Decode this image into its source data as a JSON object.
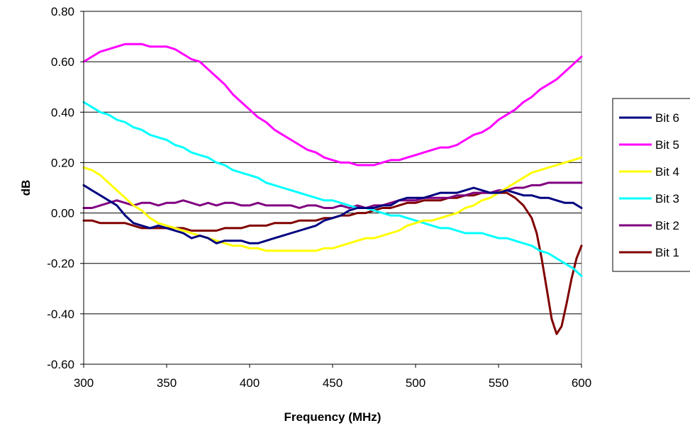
{
  "chart_data": {
    "type": "line",
    "title": "",
    "xlabel": "Frequency (MHz)",
    "ylabel": "dB",
    "xlim": [
      300,
      600
    ],
    "ylim": [
      -0.6,
      0.8
    ],
    "x_ticks": [
      300,
      350,
      400,
      450,
      500,
      550,
      600
    ],
    "x_tick_labels": [
      "300",
      "350",
      "400",
      "450",
      "500",
      "550",
      "600"
    ],
    "y_ticks": [
      -0.6,
      -0.4,
      -0.2,
      0.0,
      0.2,
      0.4,
      0.6,
      0.8
    ],
    "y_tick_labels": [
      "-0.60",
      "-0.40",
      "-0.20",
      "0.00",
      "0.20",
      "0.40",
      "0.60",
      "0.80"
    ],
    "grid": "horizontal",
    "legend_position": "right",
    "series": [
      {
        "name": "Bit 6",
        "color": "#000080",
        "x": [
          300,
          305,
          310,
          315,
          320,
          325,
          330,
          335,
          340,
          345,
          350,
          355,
          360,
          365,
          370,
          375,
          380,
          385,
          390,
          395,
          400,
          405,
          410,
          415,
          420,
          425,
          430,
          435,
          440,
          445,
          450,
          455,
          460,
          465,
          470,
          475,
          480,
          485,
          490,
          495,
          500,
          505,
          510,
          515,
          520,
          525,
          530,
          535,
          540,
          545,
          550,
          555,
          560,
          565,
          570,
          575,
          580,
          585,
          590,
          595,
          600
        ],
        "values": [
          0.11,
          0.09,
          0.07,
          0.05,
          0.03,
          -0.01,
          -0.04,
          -0.05,
          -0.06,
          -0.05,
          -0.06,
          -0.07,
          -0.08,
          -0.1,
          -0.09,
          -0.1,
          -0.12,
          -0.11,
          -0.11,
          -0.11,
          -0.12,
          -0.12,
          -0.11,
          -0.1,
          -0.09,
          -0.08,
          -0.07,
          -0.06,
          -0.05,
          -0.03,
          -0.02,
          -0.01,
          0.01,
          0.02,
          0.02,
          0.02,
          0.03,
          0.03,
          0.05,
          0.06,
          0.06,
          0.06,
          0.07,
          0.08,
          0.08,
          0.08,
          0.09,
          0.1,
          0.09,
          0.08,
          0.08,
          0.09,
          0.08,
          0.07,
          0.07,
          0.06,
          0.06,
          0.05,
          0.04,
          0.04,
          0.02
        ]
      },
      {
        "name": "Bit 5",
        "color": "#ff00ff",
        "x": [
          300,
          305,
          310,
          315,
          320,
          325,
          330,
          335,
          340,
          345,
          350,
          355,
          360,
          365,
          370,
          375,
          380,
          385,
          390,
          395,
          400,
          405,
          410,
          415,
          420,
          425,
          430,
          435,
          440,
          445,
          450,
          455,
          460,
          465,
          470,
          475,
          480,
          485,
          490,
          495,
          500,
          505,
          510,
          515,
          520,
          525,
          530,
          535,
          540,
          545,
          550,
          555,
          560,
          565,
          570,
          575,
          580,
          585,
          590,
          595,
          600
        ],
        "values": [
          0.6,
          0.62,
          0.64,
          0.65,
          0.66,
          0.67,
          0.67,
          0.67,
          0.66,
          0.66,
          0.66,
          0.65,
          0.63,
          0.61,
          0.6,
          0.57,
          0.54,
          0.51,
          0.47,
          0.44,
          0.41,
          0.38,
          0.36,
          0.33,
          0.31,
          0.29,
          0.27,
          0.25,
          0.24,
          0.22,
          0.21,
          0.2,
          0.2,
          0.19,
          0.19,
          0.19,
          0.2,
          0.21,
          0.21,
          0.22,
          0.23,
          0.24,
          0.25,
          0.26,
          0.26,
          0.27,
          0.29,
          0.31,
          0.32,
          0.34,
          0.37,
          0.39,
          0.41,
          0.44,
          0.46,
          0.49,
          0.51,
          0.53,
          0.56,
          0.59,
          0.62
        ]
      },
      {
        "name": "Bit 4",
        "color": "#ffff00",
        "x": [
          300,
          305,
          310,
          315,
          320,
          325,
          330,
          335,
          340,
          345,
          350,
          355,
          360,
          365,
          370,
          375,
          380,
          385,
          390,
          395,
          400,
          405,
          410,
          415,
          420,
          425,
          430,
          435,
          440,
          445,
          450,
          455,
          460,
          465,
          470,
          475,
          480,
          485,
          490,
          495,
          500,
          505,
          510,
          515,
          520,
          525,
          530,
          535,
          540,
          545,
          550,
          555,
          560,
          565,
          570,
          575,
          580,
          585,
          590,
          595,
          600
        ],
        "values": [
          0.18,
          0.17,
          0.15,
          0.12,
          0.09,
          0.06,
          0.03,
          0.01,
          -0.02,
          -0.04,
          -0.05,
          -0.06,
          -0.07,
          -0.08,
          -0.09,
          -0.1,
          -0.11,
          -0.12,
          -0.13,
          -0.13,
          -0.14,
          -0.14,
          -0.15,
          -0.15,
          -0.15,
          -0.15,
          -0.15,
          -0.15,
          -0.15,
          -0.14,
          -0.14,
          -0.13,
          -0.12,
          -0.11,
          -0.1,
          -0.1,
          -0.09,
          -0.08,
          -0.07,
          -0.05,
          -0.04,
          -0.03,
          -0.03,
          -0.02,
          -0.01,
          0.0,
          0.02,
          0.03,
          0.05,
          0.06,
          0.08,
          0.1,
          0.12,
          0.14,
          0.16,
          0.17,
          0.18,
          0.19,
          0.2,
          0.21,
          0.22
        ]
      },
      {
        "name": "Bit 3",
        "color": "#00ffff",
        "x": [
          300,
          305,
          310,
          315,
          320,
          325,
          330,
          335,
          340,
          345,
          350,
          355,
          360,
          365,
          370,
          375,
          380,
          385,
          390,
          395,
          400,
          405,
          410,
          415,
          420,
          425,
          430,
          435,
          440,
          445,
          450,
          455,
          460,
          465,
          470,
          475,
          480,
          485,
          490,
          495,
          500,
          505,
          510,
          515,
          520,
          525,
          530,
          535,
          540,
          545,
          550,
          555,
          560,
          565,
          570,
          575,
          580,
          585,
          590,
          595,
          600
        ],
        "values": [
          0.44,
          0.42,
          0.4,
          0.39,
          0.37,
          0.36,
          0.34,
          0.33,
          0.31,
          0.3,
          0.29,
          0.27,
          0.26,
          0.24,
          0.23,
          0.22,
          0.2,
          0.19,
          0.17,
          0.16,
          0.15,
          0.14,
          0.12,
          0.11,
          0.1,
          0.09,
          0.08,
          0.07,
          0.06,
          0.05,
          0.05,
          0.04,
          0.03,
          0.02,
          0.02,
          0.01,
          0.0,
          -0.01,
          -0.01,
          -0.02,
          -0.03,
          -0.04,
          -0.05,
          -0.06,
          -0.06,
          -0.07,
          -0.08,
          -0.08,
          -0.08,
          -0.09,
          -0.1,
          -0.1,
          -0.11,
          -0.12,
          -0.13,
          -0.15,
          -0.16,
          -0.18,
          -0.2,
          -0.22,
          -0.25
        ]
      },
      {
        "name": "Bit 2",
        "color": "#800080",
        "x": [
          300,
          305,
          310,
          315,
          320,
          325,
          330,
          335,
          340,
          345,
          350,
          355,
          360,
          365,
          370,
          375,
          380,
          385,
          390,
          395,
          400,
          405,
          410,
          415,
          420,
          425,
          430,
          435,
          440,
          445,
          450,
          455,
          460,
          465,
          470,
          475,
          480,
          485,
          490,
          495,
          500,
          505,
          510,
          515,
          520,
          525,
          530,
          535,
          540,
          545,
          550,
          555,
          560,
          565,
          570,
          575,
          580,
          585,
          590,
          595,
          600
        ],
        "values": [
          0.02,
          0.02,
          0.03,
          0.04,
          0.05,
          0.04,
          0.03,
          0.04,
          0.04,
          0.03,
          0.04,
          0.04,
          0.05,
          0.04,
          0.03,
          0.04,
          0.03,
          0.04,
          0.04,
          0.03,
          0.03,
          0.04,
          0.03,
          0.03,
          0.03,
          0.03,
          0.02,
          0.03,
          0.03,
          0.02,
          0.02,
          0.03,
          0.02,
          0.03,
          0.02,
          0.03,
          0.03,
          0.04,
          0.05,
          0.05,
          0.05,
          0.06,
          0.06,
          0.06,
          0.06,
          0.07,
          0.07,
          0.08,
          0.08,
          0.08,
          0.09,
          0.09,
          0.1,
          0.1,
          0.11,
          0.11,
          0.12,
          0.12,
          0.12,
          0.12,
          0.12
        ]
      },
      {
        "name": "Bit 1",
        "color": "#800000",
        "x": [
          300,
          305,
          310,
          315,
          320,
          325,
          330,
          335,
          340,
          345,
          350,
          355,
          360,
          365,
          370,
          375,
          380,
          385,
          390,
          395,
          400,
          405,
          410,
          415,
          420,
          425,
          430,
          435,
          440,
          445,
          450,
          455,
          460,
          465,
          470,
          475,
          480,
          485,
          490,
          495,
          500,
          505,
          510,
          515,
          520,
          525,
          530,
          535,
          540,
          545,
          550,
          555,
          560,
          565,
          570,
          573,
          576,
          579,
          582,
          585,
          588,
          591,
          594,
          597,
          600
        ],
        "values": [
          -0.03,
          -0.03,
          -0.04,
          -0.04,
          -0.04,
          -0.04,
          -0.05,
          -0.06,
          -0.06,
          -0.06,
          -0.06,
          -0.06,
          -0.06,
          -0.07,
          -0.07,
          -0.07,
          -0.07,
          -0.06,
          -0.06,
          -0.06,
          -0.05,
          -0.05,
          -0.05,
          -0.04,
          -0.04,
          -0.04,
          -0.03,
          -0.03,
          -0.03,
          -0.02,
          -0.02,
          -0.01,
          -0.01,
          0.0,
          0.0,
          0.01,
          0.02,
          0.02,
          0.03,
          0.04,
          0.04,
          0.05,
          0.05,
          0.05,
          0.06,
          0.06,
          0.07,
          0.07,
          0.08,
          0.08,
          0.08,
          0.08,
          0.06,
          0.03,
          -0.02,
          -0.08,
          -0.18,
          -0.3,
          -0.42,
          -0.48,
          -0.45,
          -0.36,
          -0.26,
          -0.18,
          -0.13
        ]
      }
    ]
  }
}
